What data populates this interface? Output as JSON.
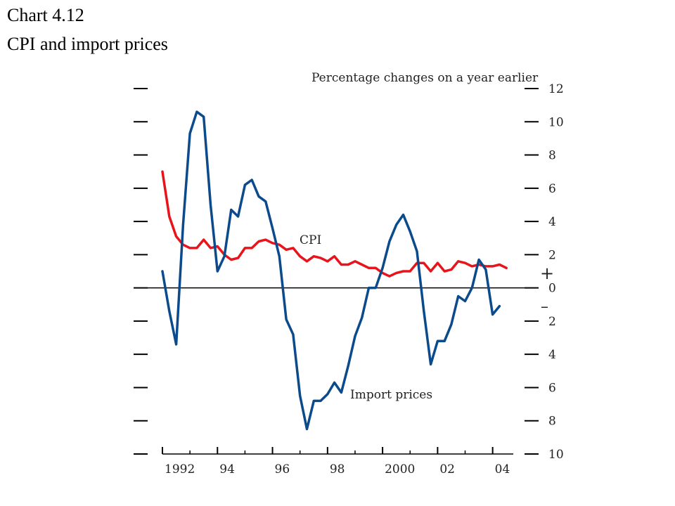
{
  "header": {
    "title": "Chart 4.12",
    "subtitle": "CPI and import prices"
  },
  "chart_data": {
    "type": "line",
    "title": "Chart 4.12",
    "subtitle": "CPI and import prices",
    "units_label": "Percentage changes on a year earlier",
    "xlabel": "",
    "ylabel": "",
    "xlim": [
      1992,
      2004.75
    ],
    "ylim": [
      -10,
      12
    ],
    "x_ticks": [
      1992,
      1994,
      1996,
      1998,
      2000,
      2002,
      2004
    ],
    "x_tick_labels": [
      "1992",
      "94",
      "96",
      "98",
      "2000",
      "02",
      "04"
    ],
    "y_ticks": [
      12,
      10,
      8,
      6,
      4,
      2,
      0,
      -2,
      -4,
      -6,
      -8,
      -10
    ],
    "y_tick_labels": [
      "12",
      "10",
      "8",
      "6",
      "4",
      "2",
      "0",
      "2",
      "4",
      "6",
      "8",
      "10"
    ],
    "sign_labels": {
      "plus": "+",
      "minus": "–"
    },
    "grid": false,
    "colors": {
      "CPI": "#e8141c",
      "Import prices": "#0b4a8b",
      "axis": "#000000"
    },
    "series": [
      {
        "name": "CPI",
        "x": [
          1992.0,
          1992.25,
          1992.5,
          1992.75,
          1993.0,
          1993.25,
          1993.5,
          1993.75,
          1994.0,
          1994.25,
          1994.5,
          1994.75,
          1995.0,
          1995.25,
          1995.5,
          1995.75,
          1996.0,
          1996.25,
          1996.5,
          1996.75,
          1997.0,
          1997.25,
          1997.5,
          1997.75,
          1998.0,
          1998.25,
          1998.5,
          1998.75,
          1999.0,
          1999.25,
          1999.5,
          1999.75,
          2000.0,
          2000.25,
          2000.5,
          2000.75,
          2001.0,
          2001.25,
          2001.5,
          2001.75,
          2002.0,
          2002.25,
          2002.5,
          2002.75,
          2003.0,
          2003.25,
          2003.5,
          2003.75,
          2004.0,
          2004.25,
          2004.5
        ],
        "values": [
          7.0,
          4.3,
          3.1,
          2.6,
          2.4,
          2.4,
          2.9,
          2.4,
          2.5,
          2.0,
          1.7,
          1.8,
          2.4,
          2.4,
          2.8,
          2.9,
          2.7,
          2.6,
          2.3,
          2.4,
          1.9,
          1.6,
          1.9,
          1.8,
          1.6,
          1.9,
          1.4,
          1.4,
          1.6,
          1.4,
          1.2,
          1.2,
          0.9,
          0.7,
          0.9,
          1.0,
          1.0,
          1.5,
          1.5,
          1.0,
          1.5,
          1.0,
          1.1,
          1.6,
          1.5,
          1.3,
          1.4,
          1.3,
          1.3,
          1.4,
          1.2
        ]
      },
      {
        "name": "Import prices",
        "x": [
          1992.0,
          1992.25,
          1992.5,
          1992.75,
          1993.0,
          1993.25,
          1993.5,
          1993.75,
          1994.0,
          1994.25,
          1994.5,
          1994.75,
          1995.0,
          1995.25,
          1995.5,
          1995.75,
          1996.0,
          1996.25,
          1996.5,
          1996.75,
          1997.0,
          1997.25,
          1997.5,
          1997.75,
          1998.0,
          1998.25,
          1998.5,
          1998.75,
          1999.0,
          1999.25,
          1999.5,
          1999.75,
          2000.0,
          2000.25,
          2000.5,
          2000.75,
          2001.0,
          2001.25,
          2001.5,
          2001.75,
          2002.0,
          2002.25,
          2002.5,
          2002.75,
          2003.0,
          2003.25,
          2003.5,
          2003.75,
          2004.0,
          2004.25
        ],
        "values": [
          1.0,
          -1.4,
          -3.4,
          3.8,
          9.3,
          10.6,
          10.3,
          5.0,
          1.0,
          1.9,
          4.7,
          4.3,
          6.2,
          6.5,
          5.5,
          5.2,
          3.6,
          1.9,
          -1.9,
          -2.8,
          -6.5,
          -8.5,
          -6.8,
          -6.8,
          -6.4,
          -5.7,
          -6.3,
          -4.7,
          -2.9,
          -1.8,
          0.0,
          0.0,
          1.2,
          2.8,
          3.8,
          4.4,
          3.4,
          2.2,
          -1.4,
          -4.6,
          -3.2,
          -3.2,
          -2.2,
          -0.5,
          -0.8,
          0.0,
          1.7,
          1.1,
          -1.6,
          -1.1
        ]
      }
    ],
    "annotations": [
      {
        "text": "CPI",
        "series": "CPI"
      },
      {
        "text": "Import prices",
        "series": "Import prices"
      }
    ]
  }
}
